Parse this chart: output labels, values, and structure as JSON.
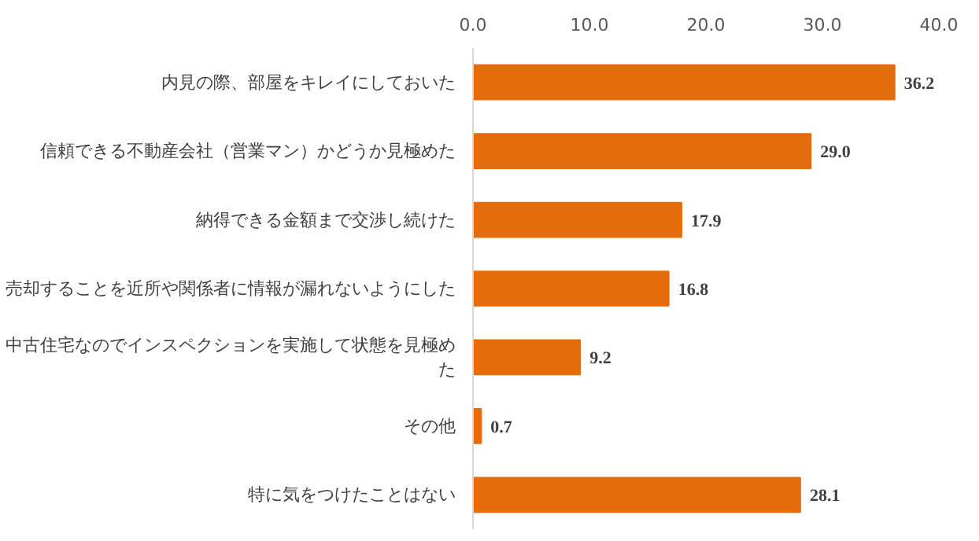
{
  "chart_data": {
    "type": "bar",
    "orientation": "horizontal",
    "categories": [
      "内見の際、部屋をキレイにしておいた",
      "信頼できる不動産会社（営業マン）かどうか見極めた",
      "納得できる金額まで交渉し続けた",
      "売却することを近所や関係者に情報が漏れないようにした",
      "中古住宅なのでインスペクションを実施して状態を見極めた",
      "その他",
      "特に気をつけたことはない"
    ],
    "values": [
      36.2,
      29.0,
      17.9,
      16.8,
      9.2,
      0.7,
      28.1
    ],
    "value_labels": [
      "36.2",
      "29.0",
      "17.9",
      "16.8",
      "9.2",
      "0.7",
      "28.1"
    ],
    "color": "#e46c0a",
    "xlim": [
      0,
      40
    ],
    "xticks": [
      {
        "value": 0,
        "label": "0.0"
      },
      {
        "value": 10,
        "label": "10.0"
      },
      {
        "value": 20,
        "label": "20.0"
      },
      {
        "value": 30,
        "label": "30.0"
      },
      {
        "value": 40,
        "label": "40.0"
      }
    ],
    "grid": false
  }
}
